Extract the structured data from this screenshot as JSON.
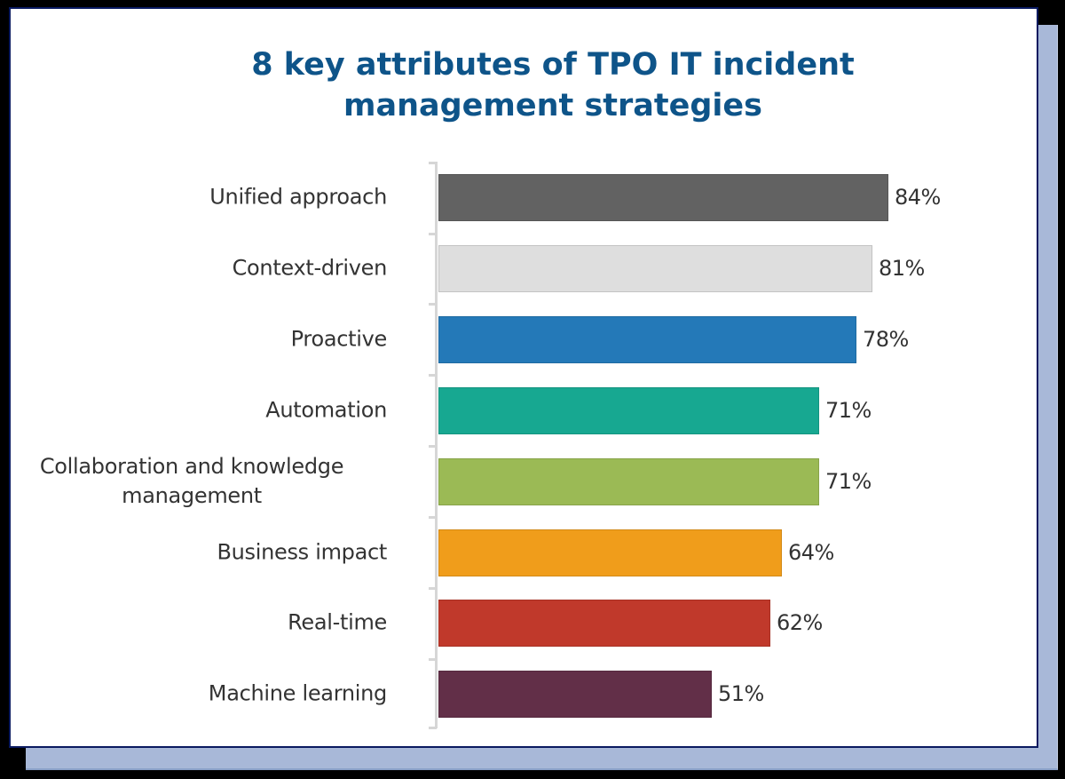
{
  "title": {
    "line1": "8 key attributes of TPO IT incident",
    "line2": "management strategies"
  },
  "colors": {
    "title": "#0e5489",
    "card_border": "#0a1a60",
    "shadow_card": "#a8b8d8",
    "axis": "#d6d6d6",
    "text": "#333333"
  },
  "bars": [
    {
      "label": "Unified approach",
      "value_label": "84%",
      "value": 84,
      "color": "#626262"
    },
    {
      "label": "Context-driven",
      "value_label": "81%",
      "value": 81,
      "color": "#dedede"
    },
    {
      "label": "Proactive",
      "value_label": "78%",
      "value": 78,
      "color": "#2479b8"
    },
    {
      "label": "Automation",
      "value_label": "71%",
      "value": 71,
      "color": "#17a891"
    },
    {
      "label": "Collaboration and knowledge management",
      "label_line1": "Collaboration and knowledge",
      "label_line2": "management",
      "value_label": "71%",
      "value": 71,
      "color": "#9bba55"
    },
    {
      "label": "Business impact",
      "value_label": "64%",
      "value": 64,
      "color": "#f09d1b"
    },
    {
      "label": "Real-time",
      "value_label": "62%",
      "value": 62,
      "color": "#c0392b"
    },
    {
      "label": "Machine learning",
      "value_label": "51%",
      "value": 51,
      "color": "#622f48"
    }
  ],
  "chart_data": {
    "type": "bar",
    "orientation": "horizontal",
    "title": "8 key attributes of TPO IT incident management strategies",
    "categories": [
      "Unified approach",
      "Context-driven",
      "Proactive",
      "Automation",
      "Collaboration and knowledge management",
      "Business impact",
      "Real-time",
      "Machine learning"
    ],
    "values": [
      84,
      81,
      78,
      71,
      71,
      64,
      62,
      51
    ],
    "value_labels": [
      "84%",
      "81%",
      "78%",
      "71%",
      "71%",
      "64%",
      "62%",
      "51%"
    ],
    "colors": [
      "#626262",
      "#dedede",
      "#2479b8",
      "#17a891",
      "#9bba55",
      "#f09d1b",
      "#c0392b",
      "#622f48"
    ],
    "xlabel": "",
    "ylabel": "",
    "unit": "%",
    "grid": false,
    "legend": null
  }
}
